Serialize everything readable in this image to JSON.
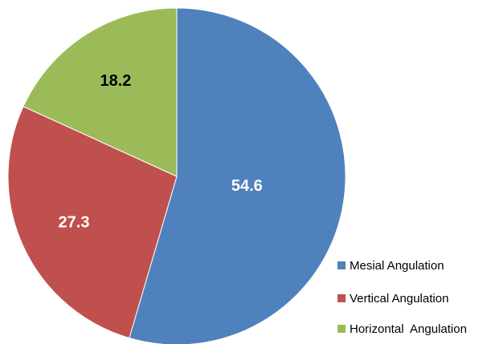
{
  "chart_data": {
    "type": "pie",
    "categories": [
      "Mesial Angulation",
      "Vertical Angulation",
      "Horizontal  Angulation"
    ],
    "values": [
      54.6,
      27.3,
      18.2
    ],
    "colors": [
      "#4f81bd",
      "#c0504d",
      "#9bbb59"
    ]
  }
}
